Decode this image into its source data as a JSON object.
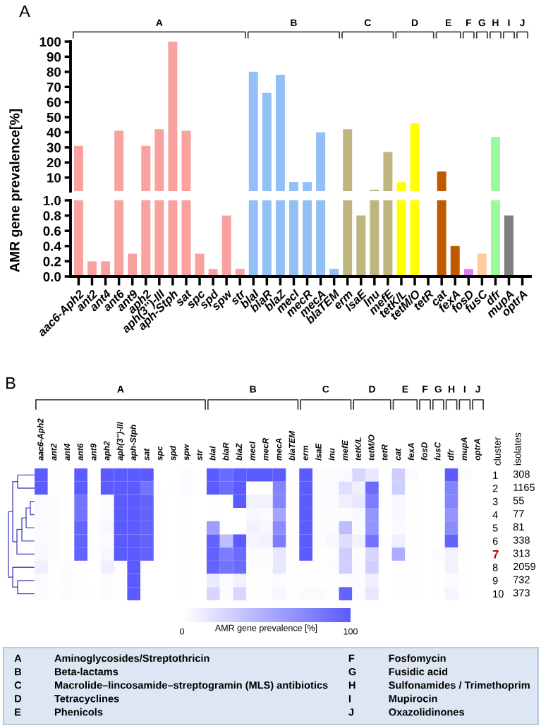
{
  "chart_data": [
    {
      "type": "bar",
      "categories": [
        "aac6-Aph2",
        "ant2",
        "ant4",
        "ant6",
        "ant9",
        "aph2",
        "aph(3'')-III",
        "aph-Stph",
        "sat",
        "spc",
        "spd",
        "spw",
        "str",
        "blaI",
        "blaR",
        "blaZ",
        "mecI",
        "mecR",
        "mecA",
        "blaTEM",
        "erm",
        "lsaE",
        "lnu",
        "mefE",
        "tetK/L",
        "tetM/O",
        "tetR",
        "cat",
        "fexA",
        "fosD",
        "fusC",
        "dfr",
        "mupA",
        "optrA"
      ],
      "values": [
        31,
        null,
        null,
        41,
        null,
        31,
        42,
        100,
        41,
        null,
        null,
        null,
        null,
        80,
        66,
        78,
        7,
        7,
        40,
        null,
        42,
        null,
        2,
        27,
        7,
        46,
        null,
        14,
        null,
        null,
        null,
        37,
        null,
        null
      ],
      "colors": [
        "#f9a19f",
        "#f9a19f",
        "#f9a19f",
        "#f9a19f",
        "#f9a19f",
        "#f9a19f",
        "#f9a19f",
        "#f9a19f",
        "#f9a19f",
        "#f9a19f",
        "#f9a19f",
        "#f9a19f",
        "#f9a19f",
        "#92bff5",
        "#92bff5",
        "#92bff5",
        "#92bff5",
        "#92bff5",
        "#92bff5",
        "#92bff5",
        "#bfb57f",
        "#bfb57f",
        "#bfb57f",
        "#bfb57f",
        "#ffff00",
        "#ffff00",
        "#ffff00",
        "#c05a00",
        "#c05a00",
        "#d77ff2",
        "#fdcb9c",
        "#9dfa9a",
        "#7f7f7f",
        "#a6a6a6"
      ],
      "ylim": [
        1,
        100
      ],
      "yticks": [
        10,
        20,
        30,
        40,
        50,
        60,
        70,
        80,
        90,
        100
      ],
      "tick_labels": "y",
      "annotations": [
        "A",
        "A",
        "B",
        "C",
        "D",
        "E",
        "F",
        "G",
        "H",
        "I",
        "J"
      ]
    },
    {
      "type": "bar",
      "categories": [
        "aac6-Aph2",
        "ant2",
        "ant4",
        "ant6",
        "ant9",
        "aph2",
        "aph(3'')-III",
        "aph-Stph",
        "sat",
        "spc",
        "spd",
        "spw",
        "str",
        "blaI",
        "blaR",
        "blaZ",
        "mecI",
        "mecR",
        "mecA",
        "blaTEM",
        "erm",
        "lsaE",
        "lnu",
        "mefE",
        "tetK/L",
        "tetM/O",
        "tetR",
        "cat",
        "fexA",
        "fosD",
        "fusC",
        "dfr",
        "mupA",
        "optrA"
      ],
      "values": [
        1.0,
        0.2,
        0.2,
        1.0,
        0.3,
        1.0,
        1.0,
        1.0,
        1.0,
        0.3,
        0.1,
        0.8,
        0.1,
        1.0,
        1.0,
        1.0,
        1.0,
        1.0,
        1.0,
        0.1,
        1.0,
        0.8,
        1.0,
        1.0,
        1.0,
        1.0,
        0,
        1.0,
        0.4,
        0.1,
        0.3,
        1.0,
        0.8,
        0
      ],
      "colors": [
        "#f9a19f",
        "#f9a19f",
        "#f9a19f",
        "#f9a19f",
        "#f9a19f",
        "#f9a19f",
        "#f9a19f",
        "#f9a19f",
        "#f9a19f",
        "#f9a19f",
        "#f9a19f",
        "#f9a19f",
        "#f9a19f",
        "#92bff5",
        "#92bff5",
        "#92bff5",
        "#92bff5",
        "#92bff5",
        "#92bff5",
        "#92bff5",
        "#bfb57f",
        "#bfb57f",
        "#bfb57f",
        "#bfb57f",
        "#ffff00",
        "#ffff00",
        "#ffff00",
        "#c05a00",
        "#c05a00",
        "#d77ff2",
        "#fdcb9c",
        "#9dfa9a",
        "#7f7f7f",
        "#a6a6a6"
      ],
      "ylim": [
        0,
        1.0
      ],
      "yticks": [
        {
          "value": 0,
          "label": "0.0"
        },
        {
          "value": 0.2,
          "label": "0.2"
        },
        {
          "value": 0.4,
          "label": "0.4"
        },
        {
          "value": 0.6,
          "label": "0.6"
        },
        {
          "value": 0.8,
          "label": "0.8"
        },
        {
          "value": 1.0,
          "label": "1.0"
        }
      ],
      "ylabel": "AMR gene prevalence[%]"
    },
    {
      "type": "heatmap",
      "categories": [
        "aac6-Aph2",
        "ant2",
        "ant4",
        "ant6",
        "ant9",
        "aph2",
        "aph(3'')-III",
        "aph-Stph",
        "sat",
        "spc",
        "spd",
        "spw",
        "str",
        "blaI",
        "blaR",
        "blaZ",
        "mecI",
        "mecR",
        "mecA",
        "blaTEM",
        "erm",
        "lsaE",
        "lnu",
        "mefE",
        "tetK/L",
        "tetM/O",
        "tetR",
        "cat",
        "fexA",
        "fosD",
        "fusC",
        "dfr",
        "mupA",
        "optrA"
      ],
      "y_categories": [
        "1",
        "2",
        "3",
        "4",
        "5",
        "6",
        "7",
        "8",
        "9",
        "10"
      ],
      "y2_categories": [
        "308",
        "1165",
        "55",
        "77",
        "81",
        "338",
        "313",
        "2059",
        "732",
        "373"
      ],
      "cells": [
        [
          100,
          1,
          0,
          100,
          0,
          100,
          100,
          100,
          100,
          0,
          0,
          2,
          0,
          100,
          90,
          100,
          100,
          100,
          100,
          1,
          100,
          2,
          3,
          4,
          25,
          15,
          0,
          30,
          3,
          0,
          1,
          100,
          3,
          0
        ],
        [
          100,
          1,
          0,
          100,
          0,
          100,
          100,
          100,
          85,
          0,
          1,
          3,
          0,
          100,
          90,
          100,
          0,
          0,
          75,
          0,
          100,
          3,
          4,
          20,
          10,
          90,
          0,
          30,
          1,
          0,
          1,
          75,
          1,
          0
        ],
        [
          3,
          2,
          1,
          85,
          1,
          2,
          100,
          100,
          95,
          1,
          0,
          1,
          0,
          1,
          0,
          100,
          8,
          8,
          75,
          1,
          100,
          3,
          3,
          10,
          15,
          80,
          0,
          5,
          1,
          0,
          1,
          75,
          1,
          0
        ],
        [
          3,
          2,
          1,
          85,
          1,
          3,
          100,
          100,
          95,
          1,
          0,
          1,
          0,
          1,
          0,
          0,
          5,
          3,
          55,
          0,
          100,
          2,
          2,
          2,
          5,
          65,
          0,
          5,
          1,
          0,
          1,
          65,
          1,
          0
        ],
        [
          4,
          2,
          1,
          95,
          1,
          5,
          100,
          100,
          95,
          1,
          0,
          1,
          0,
          60,
          0,
          0,
          8,
          5,
          70,
          0,
          100,
          2,
          2,
          40,
          3,
          65,
          0,
          3,
          1,
          0,
          1,
          70,
          1,
          0
        ],
        [
          4,
          2,
          1,
          95,
          1,
          2,
          100,
          100,
          95,
          1,
          0,
          1,
          0,
          95,
          40,
          100,
          6,
          8,
          80,
          1,
          100,
          2,
          5,
          20,
          8,
          85,
          0,
          10,
          1,
          0,
          1,
          95,
          1,
          0
        ],
        [
          5,
          2,
          1,
          95,
          1,
          5,
          100,
          100,
          95,
          1,
          0,
          1,
          0,
          95,
          80,
          90,
          2,
          2,
          15,
          0,
          100,
          1,
          1,
          30,
          2,
          25,
          0,
          50,
          1,
          0,
          2,
          8,
          1,
          0
        ],
        [
          10,
          1,
          2,
          1,
          0,
          10,
          1,
          100,
          0,
          0,
          0,
          1,
          0,
          95,
          85,
          90,
          2,
          2,
          15,
          1,
          2,
          1,
          2,
          30,
          2,
          30,
          0,
          1,
          1,
          0,
          1,
          8,
          1,
          0
        ],
        [
          2,
          1,
          2,
          1,
          0,
          2,
          1,
          100,
          0,
          0,
          0,
          1,
          0,
          12,
          3,
          8,
          1,
          1,
          2,
          1,
          1,
          1,
          1,
          2,
          2,
          10,
          0,
          1,
          1,
          0,
          1,
          3,
          1,
          0
        ],
        [
          2,
          1,
          2,
          1,
          1,
          2,
          1,
          100,
          0,
          0,
          0,
          1,
          0,
          25,
          2,
          25,
          1,
          1,
          5,
          1,
          3,
          3,
          1,
          95,
          2,
          15,
          0,
          1,
          1,
          0,
          1,
          6,
          1,
          0
        ]
      ],
      "clim": [
        0,
        100
      ],
      "cticks": [
        0,
        100
      ],
      "clabel": "AMR gene prevalence [%]",
      "annotations": [
        "B",
        "A",
        "B",
        "C",
        "D",
        "E",
        "F",
        "G",
        "H",
        "I",
        "J",
        "cluster",
        "isolates"
      ]
    },
    {
      "type": "other",
      "annotations": [
        "A",
        "Aminoglycosides/Streptothricin",
        "B",
        "Beta-lactams",
        "C",
        "Macrolide–lincosamide–streptogramin (MLS) antibiotics",
        "D",
        "Tetracyclines",
        "E",
        "Phenicols",
        "F",
        "Fosfomycin",
        "G",
        "Fusidic acid",
        "H",
        "Sulfonamides / Trimethoprim",
        "I",
        "Mupirocin",
        "J",
        "Oxazolidinones"
      ]
    }
  ]
}
